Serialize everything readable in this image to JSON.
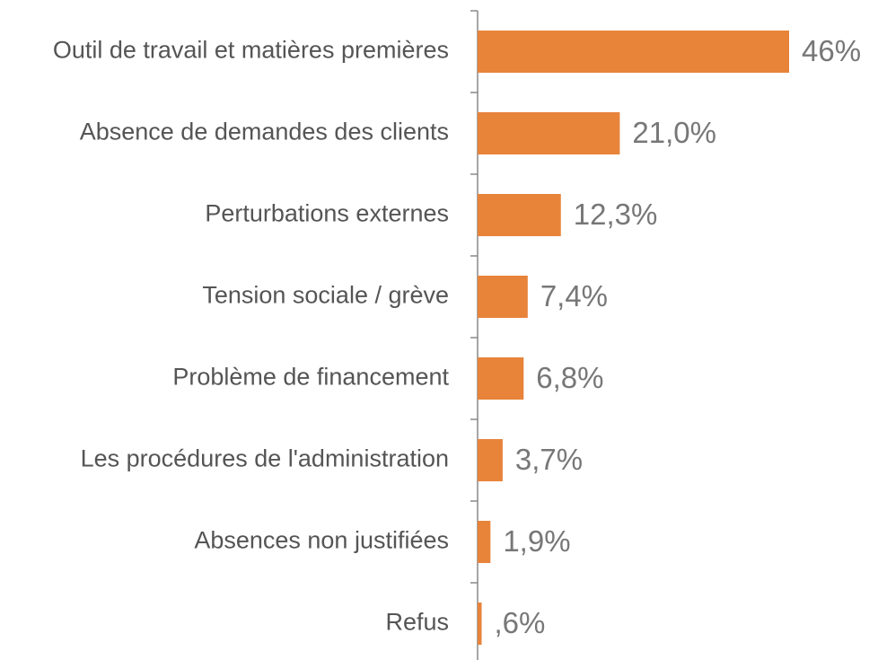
{
  "chart_data": {
    "type": "bar",
    "orientation": "horizontal",
    "categories": [
      "Outil de travail et matières premières",
      "Absence de demandes des clients",
      "Perturbations externes",
      "Tension sociale / grève",
      "Problème de financement",
      "Les procédures de l'administration",
      "Absences non justifiées",
      "Refus"
    ],
    "values": [
      46,
      21.0,
      12.3,
      7.4,
      6.8,
      3.7,
      1.9,
      0.6
    ],
    "value_labels": [
      "46%",
      "21,0%",
      "12,3%",
      "7,4%",
      "6,8%",
      "3,7%",
      "1,9%",
      ",6%"
    ],
    "color": "#e8833a"
  }
}
